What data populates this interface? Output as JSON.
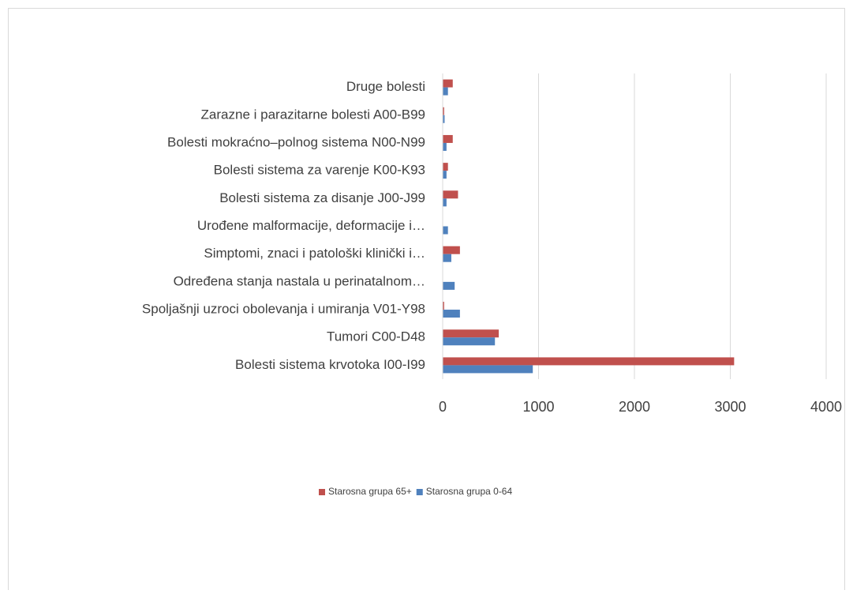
{
  "chart_data": {
    "type": "bar",
    "orientation": "horizontal",
    "categories": [
      "Bolesti sistema krvotoka I00-I99",
      "Tumori C00-D48",
      "Spoljašnji uzroci obolevanja i umiranja V01-Y98",
      "Određena stanja nastala u perinatalnom…",
      "Simptomi, znaci i patološki klinički i…",
      "Urođene malformacije, deformacije i…",
      "Bolesti sistema za disanje  J00-J99",
      "Bolesti sistema za varenje K00-K93",
      "Bolesti mokraćno–polnog sistema N00-N99",
      "Zarazne i parazitarne bolesti A00-B99",
      "Druge bolesti"
    ],
    "series": [
      {
        "name": "Starosna grupa 65+",
        "color": "#c0504d",
        "values": [
          3040,
          585,
          15,
          0,
          180,
          0,
          160,
          55,
          105,
          15,
          105
        ]
      },
      {
        "name": "Starosna grupa 0-64",
        "color": "#4f81bd",
        "values": [
          940,
          545,
          180,
          125,
          90,
          55,
          40,
          40,
          40,
          20,
          55
        ]
      }
    ],
    "xlim": [
      0,
      4000
    ],
    "xticks": [
      0,
      1000,
      2000,
      3000,
      4000
    ],
    "grid": true,
    "legend": "bottom"
  }
}
